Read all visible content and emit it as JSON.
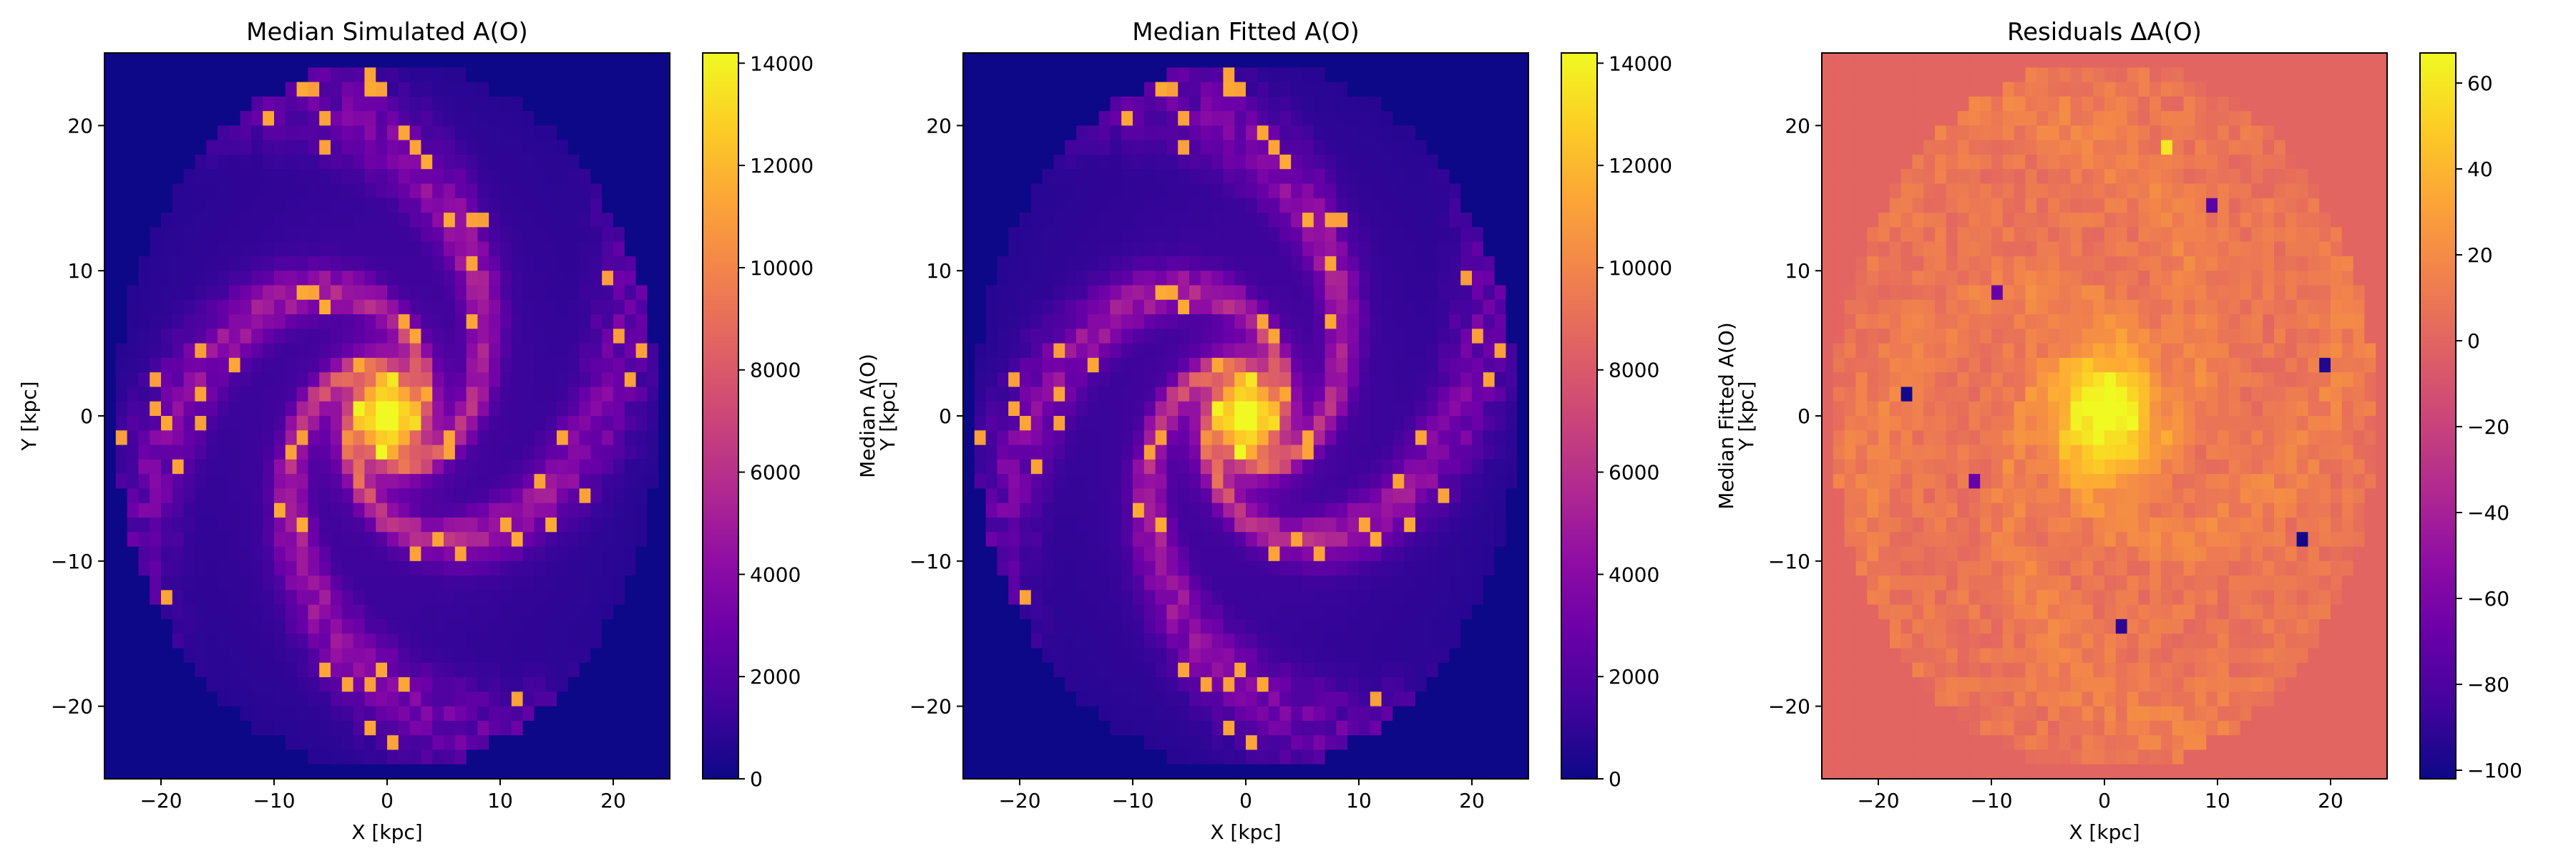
{
  "chart_data": [
    {
      "type": "heatmap",
      "title": "Median Simulated A(O)",
      "xlabel": "X [kpc]",
      "ylabel": "Y [kpc]",
      "xlim": [
        -25,
        25
      ],
      "ylim": [
        -25,
        25
      ],
      "xticks": [
        -20,
        -10,
        0,
        10,
        20
      ],
      "yticks": [
        -20,
        -10,
        0,
        10,
        20
      ],
      "xtick_labels": [
        "−20",
        "−10",
        "0",
        "10",
        "20"
      ],
      "ytick_labels": [
        "−20",
        "−10",
        "0",
        "10",
        "20"
      ],
      "grid_size": 50,
      "colormap": "plasma",
      "colorbar": {
        "label": "Median A(O)",
        "vmin": 0,
        "vmax": 14200,
        "ticks": [
          0,
          2000,
          4000,
          6000,
          8000,
          10000,
          12000,
          14000
        ],
        "tick_labels": [
          "0",
          "2000",
          "4000",
          "6000",
          "8000",
          "10000",
          "12000",
          "14000"
        ]
      },
      "field": {
        "description_kind": "spiral",
        "background_value": 0,
        "disk_radius_x": 24,
        "disk_radius_y": 24.5,
        "disk_base": 1800,
        "core_peak": 13000,
        "core_sigma": 2.6,
        "arm_count": 4,
        "arm_amplitude": 4200,
        "noise_amplitude": 2600,
        "hotspot_threshold": 0.9,
        "hotspot_value": 11500,
        "seed": 7
      }
    },
    {
      "type": "heatmap",
      "title": "Median Fitted A(O)",
      "xlabel": "X [kpc]",
      "ylabel": "Y [kpc]",
      "xlim": [
        -25,
        25
      ],
      "ylim": [
        -25,
        25
      ],
      "xticks": [
        -20,
        -10,
        0,
        10,
        20
      ],
      "yticks": [
        -20,
        -10,
        0,
        10,
        20
      ],
      "xtick_labels": [
        "−20",
        "−10",
        "0",
        "10",
        "20"
      ],
      "ytick_labels": [
        "−20",
        "−10",
        "0",
        "10",
        "20"
      ],
      "grid_size": 50,
      "colormap": "plasma",
      "colorbar": {
        "label": "Median Fitted A(O)",
        "vmin": 0,
        "vmax": 14200,
        "ticks": [
          0,
          2000,
          4000,
          6000,
          8000,
          10000,
          12000,
          14000
        ],
        "tick_labels": [
          "0",
          "2000",
          "4000",
          "6000",
          "8000",
          "10000",
          "12000",
          "14000"
        ]
      },
      "field": {
        "description_kind": "spiral",
        "background_value": 0,
        "disk_radius_x": 24,
        "disk_radius_y": 24.5,
        "disk_base": 1800,
        "core_peak": 13000,
        "core_sigma": 2.6,
        "arm_count": 4,
        "arm_amplitude": 4200,
        "noise_amplitude": 2600,
        "hotspot_threshold": 0.9,
        "hotspot_value": 11500,
        "seed": 7
      }
    },
    {
      "type": "heatmap",
      "title": "Residuals ΔA(O)",
      "xlabel": "X [kpc]",
      "ylabel": "Y [kpc]",
      "xlim": [
        -25,
        25
      ],
      "ylim": [
        -25,
        25
      ],
      "xticks": [
        -20,
        -10,
        0,
        10,
        20
      ],
      "yticks": [
        -20,
        -10,
        0,
        10,
        20
      ],
      "xtick_labels": [
        "−20",
        "−10",
        "0",
        "10",
        "20"
      ],
      "ytick_labels": [
        "−20",
        "−10",
        "0",
        "10",
        "20"
      ],
      "grid_size": 50,
      "colormap": "plasma",
      "colorbar": {
        "label": "Residuals ΔA(O)",
        "vmin": -102,
        "vmax": 67,
        "ticks": [
          -100,
          -80,
          -60,
          -40,
          -20,
          0,
          20,
          40,
          60
        ],
        "tick_labels": [
          "−100",
          "−80",
          "−60",
          "−40",
          "−20",
          "0",
          "20",
          "40",
          "60"
        ]
      },
      "field": {
        "description_kind": "residual",
        "background_value": 0,
        "disk_radius_x": 24,
        "disk_radius_y": 24.5,
        "disk_base": 8,
        "core_peak": 62,
        "core_sigma": 3.2,
        "arm_count": 4,
        "arm_amplitude": 10,
        "noise_amplitude": 14,
        "outliers": [
          {
            "x": -17.5,
            "y": 1.5,
            "value": -100
          },
          {
            "x": 17.5,
            "y": -8.5,
            "value": -100
          },
          {
            "x": 1.5,
            "y": -14.5,
            "value": -92
          },
          {
            "x": 19.5,
            "y": 3.5,
            "value": -96
          },
          {
            "x": 9.5,
            "y": 14.5,
            "value": -75
          },
          {
            "x": -9.5,
            "y": 8.5,
            "value": -70
          },
          {
            "x": -11.5,
            "y": -4.5,
            "value": -70
          },
          {
            "x": 5.5,
            "y": 18.5,
            "value": 60
          },
          {
            "x": -2.5,
            "y": -0.5,
            "value": 64
          }
        ],
        "seed": 11
      }
    }
  ]
}
